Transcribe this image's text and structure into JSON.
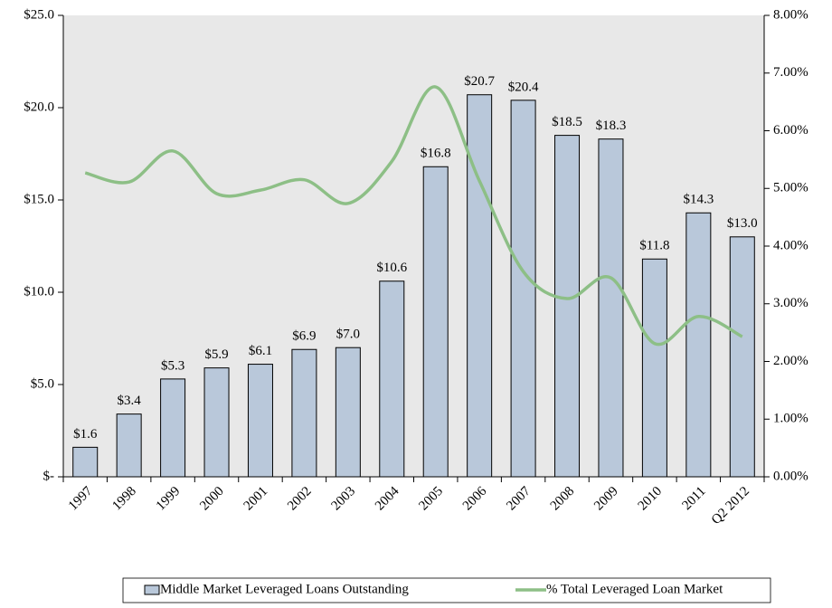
{
  "chart_data": {
    "type": "bar",
    "categories": [
      "1997",
      "1998",
      "1999",
      "2000",
      "2001",
      "2002",
      "2003",
      "2004",
      "2005",
      "2006",
      "2007",
      "2008",
      "2009",
      "2010",
      "2011",
      "Q2 2012"
    ],
    "series": [
      {
        "name": "Middle Market Leveraged Loans Outstanding",
        "type": "bar",
        "color": "#b9c8da",
        "values": [
          1.6,
          3.4,
          5.3,
          5.9,
          6.1,
          6.9,
          7.0,
          10.6,
          16.8,
          20.7,
          20.4,
          18.5,
          18.3,
          11.8,
          14.3,
          13.0
        ],
        "value_labels": [
          "$1.6",
          "$3.4",
          "$5.3",
          "$5.9",
          "$6.1",
          "$6.9",
          "$7.0",
          "$10.6",
          "$16.8",
          "$20.7",
          "$20.4",
          "$18.5",
          "$18.3",
          "$11.8",
          "$14.3",
          "$13.0"
        ]
      },
      {
        "name": "% Total Leveraged Loan Market",
        "type": "line",
        "color": "#8dbf86",
        "axis": "y2",
        "values": [
          5.27,
          5.11,
          5.65,
          4.91,
          4.97,
          5.15,
          4.74,
          5.47,
          6.76,
          5.13,
          3.56,
          3.09,
          3.45,
          2.31,
          2.78,
          2.43
        ]
      }
    ],
    "ylim": [
      0,
      25
    ],
    "yticks": [
      {
        "value": 0,
        "label": "$-"
      },
      {
        "value": 5,
        "label": "$5.0"
      },
      {
        "value": 10,
        "label": "$10.0"
      },
      {
        "value": 15,
        "label": "$15.0"
      },
      {
        "value": 20,
        "label": "$20.0"
      },
      {
        "value": 25,
        "label": "$25.0"
      }
    ],
    "y2lim": [
      0,
      8
    ],
    "y2ticks": [
      {
        "value": 0,
        "label": "0.00%"
      },
      {
        "value": 1,
        "label": "1.00%"
      },
      {
        "value": 2,
        "label": "2.00%"
      },
      {
        "value": 3,
        "label": "3.00%"
      },
      {
        "value": 4,
        "label": "4.00%"
      },
      {
        "value": 5,
        "label": "5.00%"
      },
      {
        "value": 6,
        "label": "6.00%"
      },
      {
        "value": 7,
        "label": "7.00%"
      },
      {
        "value": 8,
        "label": "8.00%"
      }
    ],
    "legend": "bottom"
  }
}
